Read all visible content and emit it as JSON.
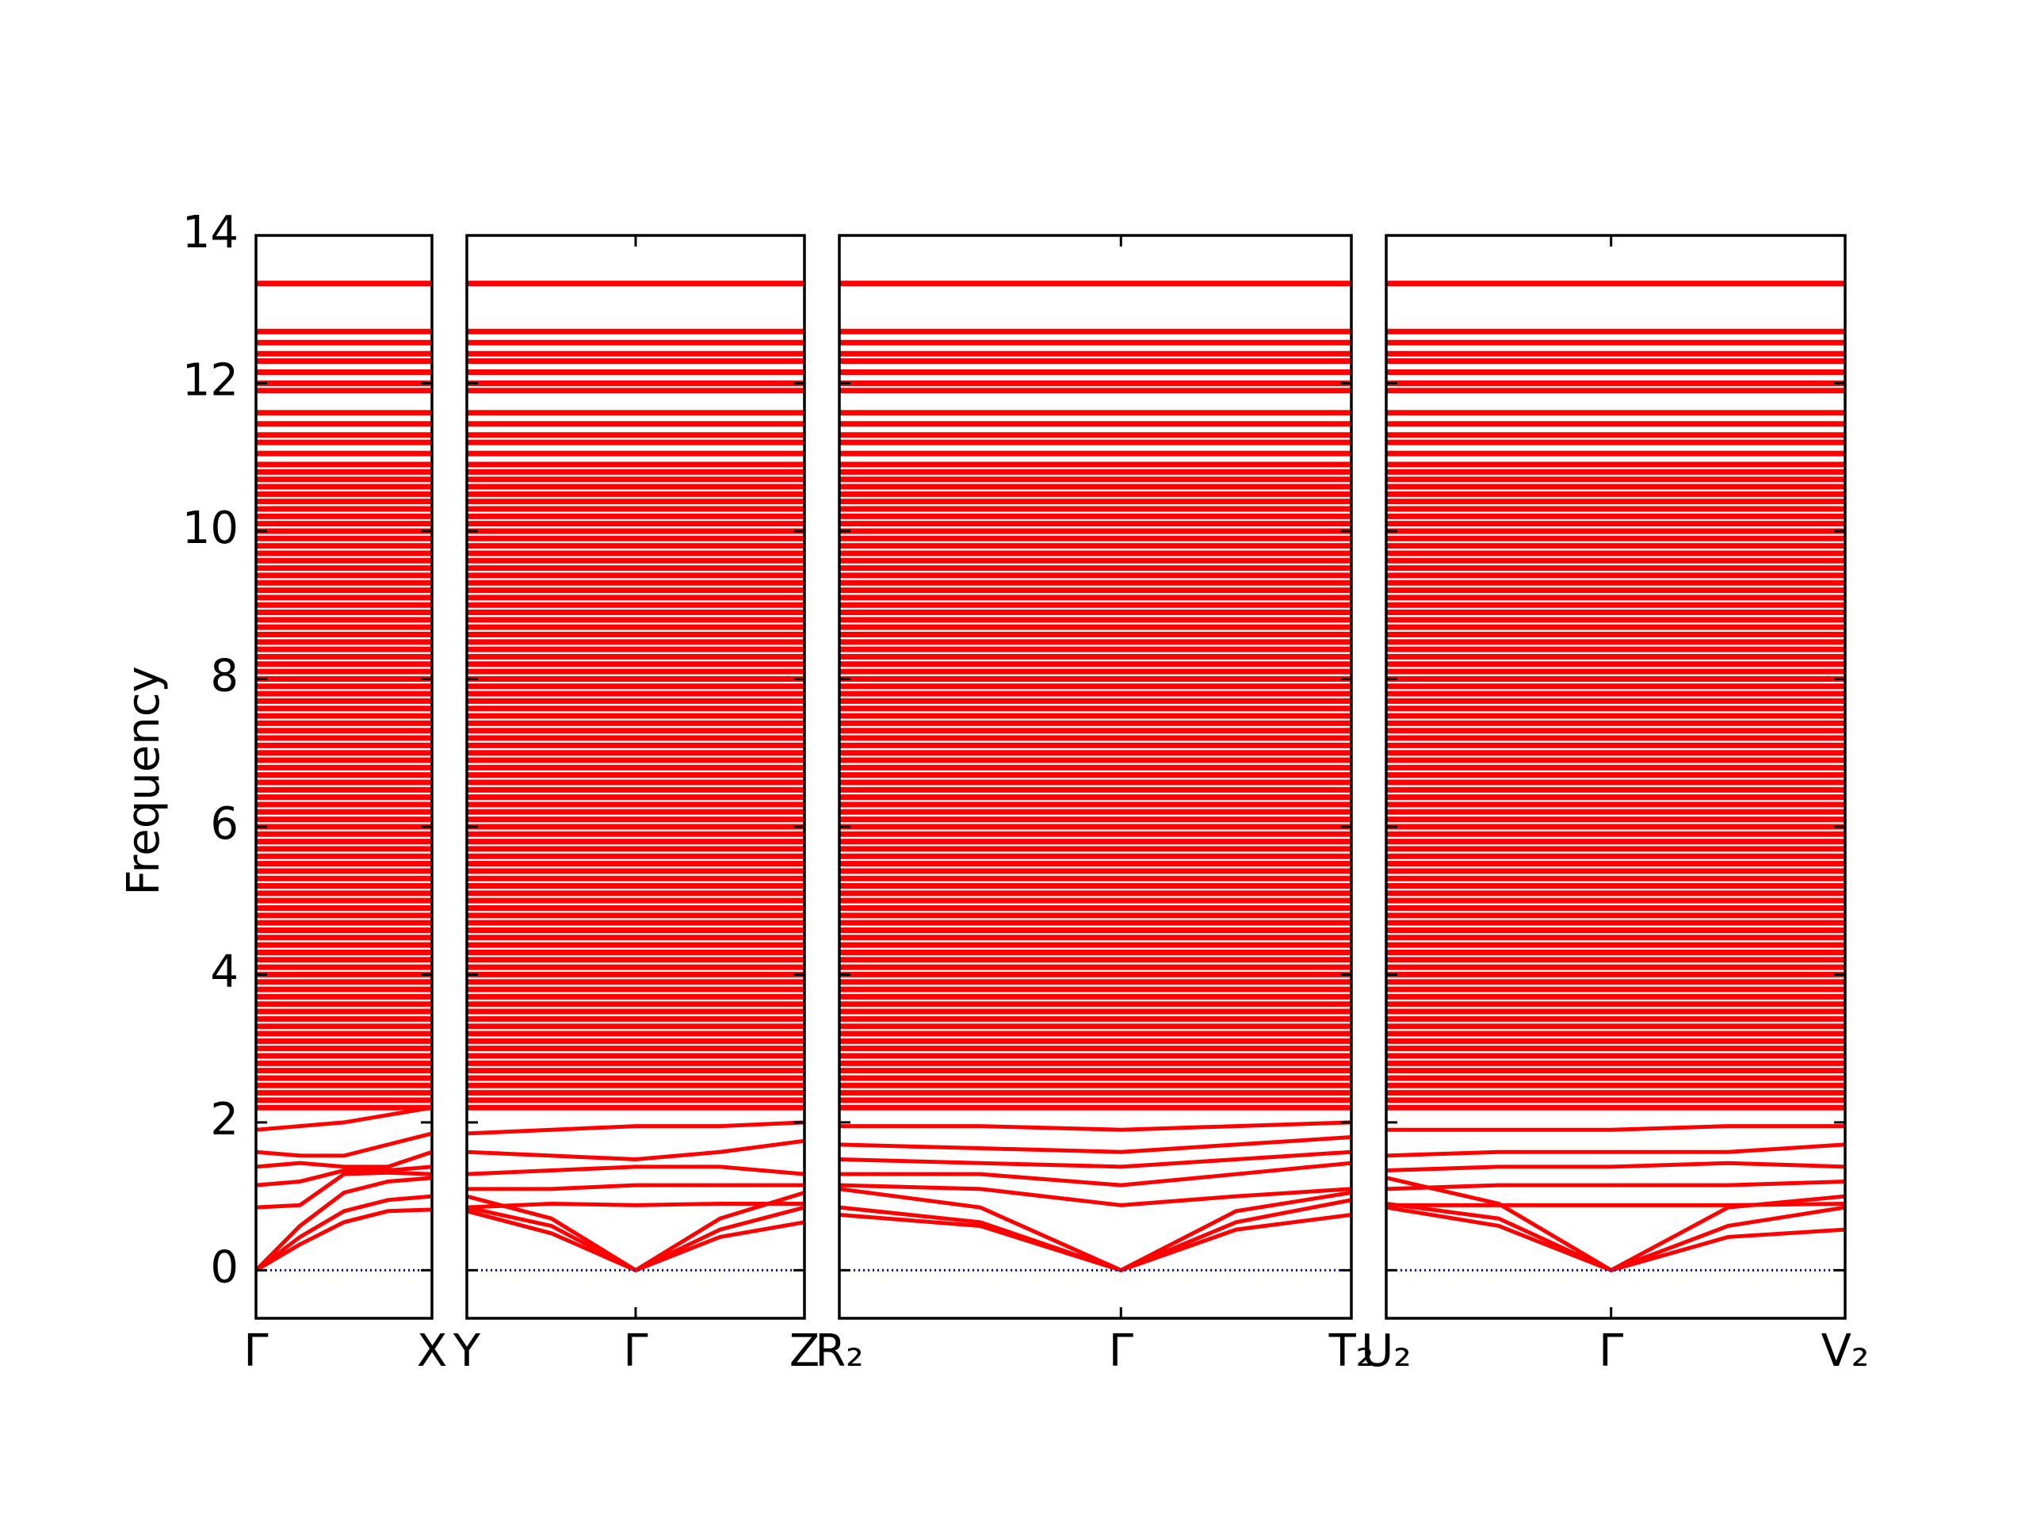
{
  "chart_data": {
    "type": "line",
    "ylabel": "Frequency",
    "ylim": [
      -0.65,
      14
    ],
    "yticks": [
      0,
      2,
      4,
      6,
      8,
      10,
      12,
      14
    ],
    "color": "#ff0000",
    "zero_line": {
      "value": 0,
      "color": "#0000cc"
    },
    "flat_bands": [
      2.2,
      2.3,
      2.4,
      2.5,
      2.6,
      2.7,
      2.8,
      2.9,
      3.0,
      3.1,
      3.2,
      3.3,
      3.4,
      3.5,
      3.6,
      3.7,
      3.8,
      3.9,
      4.0,
      4.1,
      4.2,
      4.3,
      4.4,
      4.5,
      4.6,
      4.7,
      4.8,
      4.9,
      5.0,
      5.1,
      5.2,
      5.3,
      5.4,
      5.5,
      5.6,
      5.7,
      5.8,
      5.9,
      6.0,
      6.1,
      6.2,
      6.3,
      6.4,
      6.5,
      6.6,
      6.7,
      6.8,
      6.9,
      7.0,
      7.1,
      7.2,
      7.3,
      7.4,
      7.5,
      7.6,
      7.7,
      7.8,
      7.9,
      8.0,
      8.1,
      8.2,
      8.3,
      8.4,
      8.5,
      8.6,
      8.7,
      8.8,
      8.9,
      9.0,
      9.1,
      9.2,
      9.3,
      9.4,
      9.5,
      9.6,
      9.7,
      9.8,
      9.9,
      10.0,
      10.1,
      10.2,
      10.3,
      10.4,
      10.5,
      10.6,
      10.7,
      10.8,
      10.9,
      11.05,
      11.2,
      11.3,
      11.45,
      11.6,
      11.9,
      12.0,
      12.15,
      12.3,
      12.4,
      12.55,
      12.7,
      13.35
    ],
    "panels": [
      {
        "xlim": [
          0,
          1
        ],
        "x": [
          0,
          0.25,
          0.5,
          0.75,
          1
        ],
        "xticks": [
          {
            "value": 0,
            "label": "Γ"
          },
          {
            "value": 1,
            "label": "X"
          }
        ],
        "series": [
          {
            "values": [
              0,
              0.35,
              0.65,
              0.8,
              0.82
            ]
          },
          {
            "values": [
              0,
              0.45,
              0.8,
              0.95,
              1.0
            ]
          },
          {
            "values": [
              0,
              0.6,
              1.05,
              1.2,
              1.25
            ]
          },
          {
            "values": [
              0.85,
              0.88,
              1.3,
              1.32,
              1.3
            ]
          },
          {
            "values": [
              1.15,
              1.2,
              1.35,
              1.35,
              1.4
            ]
          },
          {
            "values": [
              1.4,
              1.45,
              1.4,
              1.4,
              1.6
            ]
          },
          {
            "values": [
              1.6,
              1.55,
              1.55,
              1.7,
              1.85
            ]
          },
          {
            "values": [
              1.9,
              1.95,
              2.0,
              2.1,
              2.2
            ]
          }
        ]
      },
      {
        "xlim": [
          0,
          1
        ],
        "x": [
          0,
          0.25,
          0.5,
          0.75,
          1
        ],
        "xticks": [
          {
            "value": 0,
            "label": "Y"
          },
          {
            "value": 0.5,
            "label": "Γ"
          },
          {
            "value": 1,
            "label": "Z"
          }
        ],
        "series": [
          {
            "values": [
              0.8,
              0.5,
              0,
              0.45,
              0.65
            ]
          },
          {
            "values": [
              0.85,
              0.6,
              0,
              0.55,
              0.85
            ]
          },
          {
            "values": [
              1.0,
              0.7,
              0,
              0.7,
              1.05
            ]
          },
          {
            "values": [
              0.85,
              0.9,
              0.88,
              0.9,
              0.9
            ]
          },
          {
            "values": [
              1.1,
              1.1,
              1.15,
              1.15,
              1.15
            ]
          },
          {
            "values": [
              1.3,
              1.35,
              1.4,
              1.4,
              1.3
            ]
          },
          {
            "values": [
              1.6,
              1.55,
              1.5,
              1.6,
              1.75
            ]
          },
          {
            "values": [
              1.85,
              1.9,
              1.95,
              1.95,
              2.0
            ]
          }
        ]
      },
      {
        "xlim": [
          0,
          1
        ],
        "x": [
          0,
          0.275,
          0.55,
          0.775,
          1
        ],
        "xticks": [
          {
            "value": 0,
            "label": "R₂"
          },
          {
            "value": 0.55,
            "label": "Γ"
          },
          {
            "value": 1,
            "label": "T₂"
          }
        ],
        "series": [
          {
            "values": [
              0.75,
              0.6,
              0,
              0.55,
              0.75
            ]
          },
          {
            "values": [
              0.85,
              0.65,
              0,
              0.65,
              0.95
            ]
          },
          {
            "values": [
              1.1,
              0.85,
              0,
              0.8,
              1.05
            ]
          },
          {
            "values": [
              1.15,
              1.1,
              0.88,
              1.0,
              1.1
            ]
          },
          {
            "values": [
              1.3,
              1.3,
              1.15,
              1.3,
              1.45
            ]
          },
          {
            "values": [
              1.5,
              1.45,
              1.4,
              1.5,
              1.6
            ]
          },
          {
            "values": [
              1.7,
              1.65,
              1.6,
              1.7,
              1.8
            ]
          },
          {
            "values": [
              1.95,
              1.95,
              1.9,
              1.95,
              2.0
            ]
          }
        ]
      },
      {
        "xlim": [
          0,
          1
        ],
        "x": [
          0,
          0.245,
          0.49,
          0.745,
          1
        ],
        "xticks": [
          {
            "value": 0,
            "label": "U₂"
          },
          {
            "value": 0.49,
            "label": "Γ"
          },
          {
            "value": 1,
            "label": "V₂"
          }
        ],
        "series": [
          {
            "values": [
              0.85,
              0.6,
              0,
              0.45,
              0.55
            ]
          },
          {
            "values": [
              0.9,
              0.7,
              0,
              0.6,
              0.85
            ]
          },
          {
            "values": [
              1.25,
              0.9,
              0,
              0.85,
              1.0
            ]
          },
          {
            "values": [
              0.88,
              0.88,
              0.88,
              0.88,
              0.9
            ]
          },
          {
            "values": [
              1.1,
              1.15,
              1.15,
              1.15,
              1.2
            ]
          },
          {
            "values": [
              1.35,
              1.4,
              1.4,
              1.45,
              1.4
            ]
          },
          {
            "values": [
              1.55,
              1.6,
              1.6,
              1.6,
              1.7
            ]
          },
          {
            "values": [
              1.9,
              1.9,
              1.9,
              1.95,
              1.95
            ]
          }
        ]
      }
    ]
  }
}
